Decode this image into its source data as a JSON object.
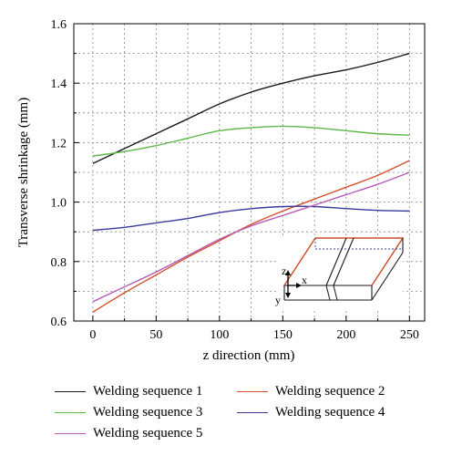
{
  "chart_data": {
    "type": "line",
    "xlabel": "z direction (mm)",
    "ylabel": "Transverse shrinkage (mm)",
    "xlim": [
      -15,
      262
    ],
    "ylim": [
      0.6,
      1.6
    ],
    "x_ticks": [
      0,
      50,
      100,
      150,
      200,
      250
    ],
    "y_ticks": [
      0.6,
      0.8,
      1.0,
      1.2,
      1.4,
      1.6
    ],
    "x_tick_labels": [
      "0",
      "50",
      "100",
      "150",
      "200",
      "250"
    ],
    "y_tick_labels": [
      "0.6",
      "0.8",
      "1.0",
      "1.2",
      "1.4",
      "1.6"
    ],
    "grid": true,
    "legend_position": "bottom",
    "x": [
      0,
      25,
      50,
      75,
      100,
      125,
      150,
      175,
      200,
      225,
      250
    ],
    "series": [
      {
        "name": "Welding sequence 1",
        "color": "#1a1a1a",
        "values": [
          1.13,
          1.18,
          1.23,
          1.28,
          1.33,
          1.37,
          1.4,
          1.425,
          1.445,
          1.47,
          1.5
        ]
      },
      {
        "name": "Welding sequence 2",
        "color": "#d4502a",
        "values": [
          0.63,
          0.695,
          0.755,
          0.815,
          0.87,
          0.925,
          0.97,
          1.01,
          1.05,
          1.09,
          1.14
        ]
      },
      {
        "name": "Welding sequence 3",
        "color": "#5cb849",
        "values": [
          1.155,
          1.17,
          1.19,
          1.215,
          1.24,
          1.25,
          1.255,
          1.25,
          1.24,
          1.23,
          1.225
        ]
      },
      {
        "name": "Welding sequence 4",
        "color": "#3a3a9c",
        "values": [
          0.905,
          0.915,
          0.93,
          0.945,
          0.965,
          0.978,
          0.985,
          0.985,
          0.978,
          0.972,
          0.97
        ]
      },
      {
        "name": "Welding sequence 5",
        "color": "#b65cb6",
        "values": [
          0.665,
          0.715,
          0.765,
          0.82,
          0.875,
          0.92,
          0.955,
          0.99,
          1.025,
          1.06,
          1.1
        ]
      }
    ],
    "inset_axis_labels": [
      "z",
      "x",
      "y"
    ]
  }
}
